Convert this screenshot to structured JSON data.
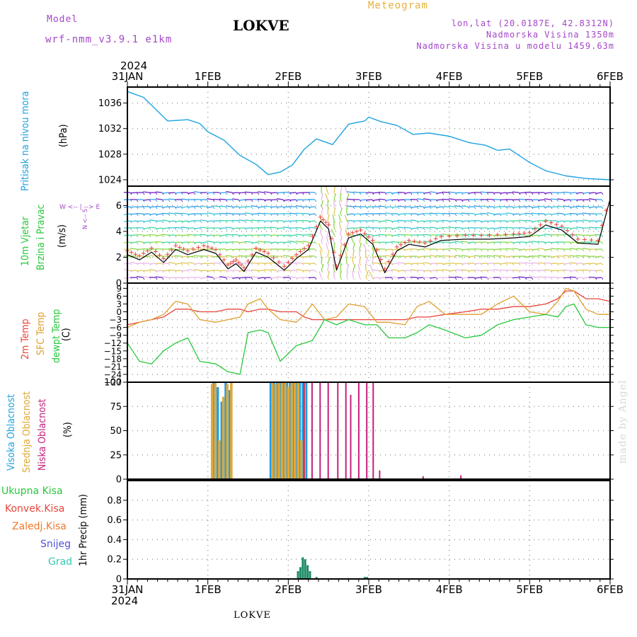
{
  "header": {
    "model_label": "Model",
    "model_name": "wrf-nmm_v3.9.1 e1km",
    "station": "LOKVE",
    "meteogram": "Meteogram",
    "coords": "lon,lat (20.0187E, 42.8312N)",
    "elevation": "Nadmorska Visina 1350m",
    "model_elevation": "Nadmorska Visina u modelu 1459.63m",
    "year": "2024",
    "footer_station": "LOKVE",
    "signature": "made by Angel"
  },
  "colors": {
    "pressure": "#1fa3e0",
    "temp2m": "#e8453c",
    "sfctemp": "#e0a030",
    "dewpt": "#28c83c",
    "cloud_high": "#1f9ee8",
    "cloud_mid": "#e0a83a",
    "cloud_low": "#c4207a",
    "precip_total": "#1e8c64",
    "wind_speed": "#000000",
    "gust_marker": "#e8453c"
  },
  "panel_labels": {
    "pressure": {
      "title": "Pritisak na nivou mora",
      "unit": "(hPa)"
    },
    "wind": {
      "title1": "10m Vjetar",
      "title2": "Brzina i Pravac",
      "unit": "(m/s)",
      "compass": "W  <-- | -->  E",
      "compass_ns": "N  <--  S"
    },
    "temp": {
      "l1": "2m Temp",
      "l2": "SFC Temp",
      "l3": "dewpt Temp",
      "unit": "(C)"
    },
    "cloud": {
      "l1": "Visoka Oblacnost",
      "l2": "Srednja Oblacnost",
      "l3": "Niska Oblacnost",
      "unit": "(%)"
    },
    "precip": {
      "unit": "1hr Precip (mm)",
      "legend": [
        "Ukupna Kisa",
        "Konvek.Kisa",
        "Zaledj.Kisa",
        "Snijeg",
        "Grad"
      ]
    }
  },
  "chart_data": [
    {
      "type": "line",
      "name": "pressure",
      "x_ticks": [
        "31JAN",
        "1FEB",
        "2FEB",
        "3FEB",
        "4FEB",
        "5FEB",
        "6FEB"
      ],
      "ylabel": "(hPa)",
      "ylim": [
        1023,
        1038.5
      ],
      "yticks": [
        1024,
        1028,
        1032,
        1036
      ],
      "grid": true,
      "x": [
        0,
        0.2,
        0.5,
        0.75,
        0.9,
        1.0,
        1.2,
        1.4,
        1.6,
        1.75,
        1.9,
        2.05,
        2.2,
        2.35,
        2.55,
        2.75,
        2.95,
        3.0,
        3.15,
        3.35,
        3.55,
        3.75,
        4.0,
        4.25,
        4.45,
        4.6,
        4.75,
        5.0,
        5.2,
        5.45,
        5.7,
        6.0
      ],
      "series": [
        {
          "values": [
            1037.8,
            1036.9,
            1033.2,
            1033.4,
            1032.8,
            1031.5,
            1030.2,
            1027.8,
            1026.4,
            1024.8,
            1025.2,
            1026.3,
            1028.8,
            1030.4,
            1029.5,
            1032.7,
            1033.2,
            1033.8,
            1033.1,
            1032.5,
            1031.1,
            1031.3,
            1030.8,
            1029.8,
            1029.4,
            1028.6,
            1028.8,
            1026.7,
            1025.4,
            1024.6,
            1024.2,
            1024.0
          ]
        }
      ]
    },
    {
      "type": "line",
      "name": "wind",
      "ylabel": "(m/s)",
      "ylim": [
        0,
        7.5
      ],
      "yticks": [
        0,
        2,
        4,
        6
      ],
      "grid": true,
      "x": [
        0,
        0.15,
        0.3,
        0.45,
        0.6,
        0.75,
        0.95,
        1.1,
        1.25,
        1.35,
        1.45,
        1.6,
        1.75,
        1.95,
        2.1,
        2.25,
        2.4,
        2.5,
        2.6,
        2.75,
        2.9,
        3.05,
        3.2,
        3.35,
        3.5,
        3.7,
        3.9,
        4.2,
        4.5,
        4.8,
        5.0,
        5.2,
        5.4,
        5.6,
        5.85,
        6.0
      ],
      "series": [
        {
          "values": [
            2.2,
            1.8,
            2.4,
            1.6,
            2.6,
            2.2,
            2.6,
            2.3,
            1.1,
            1.5,
            0.9,
            2.4,
            2.0,
            1.0,
            1.9,
            2.6,
            4.8,
            4.2,
            1.0,
            3.5,
            3.8,
            3.0,
            0.8,
            2.5,
            3.0,
            2.8,
            3.3,
            3.4,
            3.4,
            3.5,
            3.6,
            4.5,
            4.1,
            3.1,
            3.0,
            6.5
          ]
        }
      ]
    },
    {
      "type": "line",
      "name": "temperature",
      "ylabel": "(C)",
      "ylim": [
        -27,
        11
      ],
      "yticks": [
        -27,
        -24,
        -21,
        -18,
        -15,
        -12,
        -9,
        -6,
        -3,
        0,
        3,
        6,
        9
      ],
      "grid": true,
      "x": [
        0,
        0.15,
        0.3,
        0.45,
        0.6,
        0.75,
        0.9,
        1.1,
        1.25,
        1.4,
        1.5,
        1.65,
        1.75,
        1.9,
        2.1,
        2.2,
        2.3,
        2.45,
        2.6,
        2.75,
        2.95,
        3.1,
        3.25,
        3.45,
        3.6,
        3.75,
        3.95,
        4.2,
        4.4,
        4.6,
        4.8,
        5.0,
        5.2,
        5.35,
        5.45,
        5.55,
        5.7,
        5.85,
        6.0
      ],
      "series": [
        {
          "name": "2m Temp",
          "values": [
            -5,
            -4,
            -3,
            -2,
            1,
            1,
            0,
            0,
            1,
            1,
            0,
            1,
            1,
            0,
            0,
            -2,
            -3,
            -3,
            -3,
            -3,
            -3,
            -3,
            -3,
            -3,
            -2,
            -2,
            -1,
            0,
            1,
            1,
            2,
            2,
            3,
            5,
            8,
            8,
            5,
            5,
            4
          ]
        },
        {
          "name": "SFC Temp",
          "values": [
            -6,
            -4,
            -3,
            -1,
            4,
            3,
            -3,
            -4,
            -3,
            -2,
            3,
            5,
            1,
            -3,
            -4,
            -1,
            3,
            -3,
            -2,
            3,
            2,
            -4,
            -4,
            -5,
            2,
            4,
            -1,
            -1,
            -1,
            3,
            6,
            0,
            -1,
            4,
            9,
            8,
            1,
            -1,
            -1
          ]
        },
        {
          "name": "dewpt Temp",
          "values": [
            -12,
            -19,
            -20,
            -15,
            -12,
            -10,
            -19,
            -20,
            -23,
            -24,
            -8,
            -7,
            -8,
            -19,
            -13,
            -12,
            -11,
            -3,
            -5,
            -3,
            -5,
            -5,
            -10,
            -10,
            -8,
            -5,
            -7,
            -10,
            -9,
            -5,
            -3,
            -2,
            -1,
            -2,
            2,
            3,
            -5,
            -6,
            -6
          ]
        }
      ]
    },
    {
      "type": "bar",
      "name": "cloud",
      "ylabel": "(%)",
      "ylim": [
        0,
        100
      ],
      "yticks": [
        0,
        25,
        50,
        75,
        100
      ],
      "grid": true,
      "series": [
        {
          "name": "Visoka Oblacnost",
          "x": [
            1.07,
            1.12,
            1.17,
            1.22,
            1.27,
            1.78,
            1.82,
            1.86,
            1.9,
            1.94,
            1.98,
            2.02,
            2.06,
            2.1,
            2.14,
            2.18,
            2.22
          ],
          "values": [
            100,
            95,
            80,
            100,
            92,
            100,
            100,
            100,
            100,
            100,
            100,
            100,
            100,
            100,
            100,
            100,
            100
          ]
        },
        {
          "name": "Srednja Oblacnost",
          "x": [
            1.05,
            1.09,
            1.14,
            1.19,
            1.24,
            1.29,
            1.8,
            1.84,
            1.88,
            1.92,
            1.96,
            2.0,
            2.04,
            2.08,
            2.12,
            2.16,
            2.2
          ],
          "values": [
            98,
            100,
            40,
            85,
            98,
            100,
            100,
            98,
            100,
            100,
            100,
            95,
            100,
            100,
            100,
            40,
            98
          ]
        },
        {
          "name": "Niska Oblacnost",
          "x": [
            2.2,
            2.3,
            2.4,
            2.5,
            2.62,
            2.72,
            2.78,
            2.88,
            2.98,
            3.06,
            3.14,
            3.68,
            4.15
          ],
          "values": [
            100,
            100,
            100,
            100,
            100,
            100,
            87,
            100,
            100,
            100,
            9,
            3,
            4
          ]
        }
      ]
    },
    {
      "type": "bar",
      "name": "precip",
      "ylabel": "1hr Precip (mm)",
      "ylim": [
        0,
        1.0
      ],
      "yticks": [
        0,
        0.2,
        0.4,
        0.6,
        0.8
      ],
      "grid": true,
      "series": [
        {
          "name": "Ukupna Kisa",
          "x": [
            2.12,
            2.15,
            2.18,
            2.21,
            2.24,
            2.27,
            2.35,
            2.95,
            2.98
          ],
          "values": [
            0.08,
            0.12,
            0.22,
            0.2,
            0.14,
            0.08,
            0.02,
            0.02,
            0.02
          ]
        }
      ]
    }
  ]
}
